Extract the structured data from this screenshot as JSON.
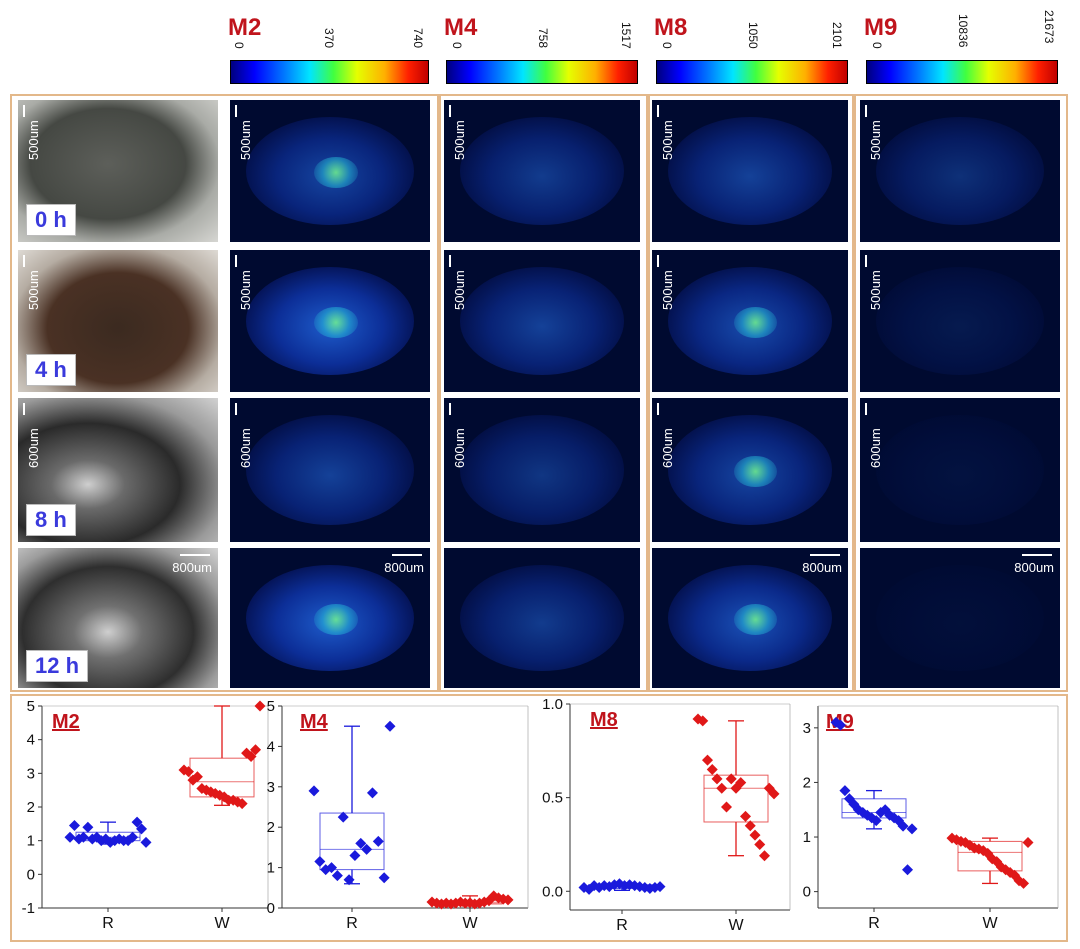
{
  "colorbars": [
    {
      "title": "M2",
      "ticks": [
        "0",
        "370",
        "740"
      ]
    },
    {
      "title": "M4",
      "ticks": [
        "0",
        "758",
        "1517"
      ]
    },
    {
      "title": "M8",
      "ticks": [
        "0",
        "1050",
        "2101"
      ]
    },
    {
      "title": "M9",
      "ticks": [
        "0",
        "10836",
        "21673"
      ]
    }
  ],
  "time_labels": [
    "0 h",
    "4 h",
    "8 h",
    "12 h"
  ],
  "scale_labels": {
    "r0": "500um",
    "r1": "500um",
    "r2": "600um",
    "r3": "800um"
  },
  "colors": {
    "R": "#1a1adc",
    "W": "#e01818",
    "frame": "#e3b88a",
    "title": "#c0141c"
  },
  "chart_data": [
    {
      "type": "box",
      "title": "M2",
      "categories": [
        "R",
        "W"
      ],
      "ylim": [
        -1,
        5
      ],
      "yticks": [
        "-1",
        "0",
        "1",
        "2",
        "3",
        "4",
        "5"
      ],
      "series": [
        {
          "name": "R",
          "q1": 1.0,
          "median": 1.1,
          "q3": 1.25,
          "whisker_low": 0.9,
          "whisker_high": 1.55,
          "points": [
            1.1,
            1.45,
            1.05,
            1.1,
            1.4,
            1.05,
            1.1,
            1.0,
            1.05,
            0.95,
            1.0,
            1.05,
            1.0,
            1.0,
            1.1,
            1.55,
            1.35,
            0.95
          ]
        },
        {
          "name": "W",
          "q1": 2.3,
          "median": 2.75,
          "q3": 3.45,
          "whisker_low": 2.05,
          "whisker_high": 5.0,
          "points": [
            3.1,
            3.05,
            2.8,
            2.9,
            2.55,
            2.5,
            2.45,
            2.4,
            2.35,
            2.3,
            2.2,
            2.2,
            2.15,
            2.1,
            3.6,
            3.5,
            3.7,
            5.0
          ]
        }
      ]
    },
    {
      "type": "box",
      "title": "M4",
      "categories": [
        "R",
        "W"
      ],
      "ylim": [
        0,
        5
      ],
      "yticks": [
        "0",
        "1",
        "2",
        "3",
        "4",
        "5"
      ],
      "series": [
        {
          "name": "R",
          "q1": 0.95,
          "median": 1.45,
          "q3": 2.35,
          "whisker_low": 0.6,
          "whisker_high": 4.5,
          "points": [
            2.9,
            1.15,
            0.95,
            1.0,
            0.8,
            2.25,
            0.7,
            1.3,
            1.6,
            1.45,
            2.85,
            1.65,
            0.75,
            4.5
          ]
        },
        {
          "name": "W",
          "q1": 0.1,
          "median": 0.13,
          "q3": 0.18,
          "whisker_low": 0.05,
          "whisker_high": 0.3,
          "points": [
            0.15,
            0.12,
            0.1,
            0.12,
            0.1,
            0.12,
            0.15,
            0.12,
            0.13,
            0.1,
            0.12,
            0.15,
            0.18,
            0.3,
            0.25,
            0.22,
            0.2
          ]
        }
      ]
    },
    {
      "type": "box",
      "title": "M8",
      "categories": [
        "R",
        "W"
      ],
      "ylim": [
        -0.1,
        1.0
      ],
      "yticks": [
        "0.0",
        "0.5",
        "1.0"
      ],
      "series": [
        {
          "name": "R",
          "q1": 0.015,
          "median": 0.025,
          "q3": 0.035,
          "whisker_low": 0.005,
          "whisker_high": 0.045,
          "points": [
            0.02,
            0.01,
            0.03,
            0.02,
            0.03,
            0.025,
            0.035,
            0.04,
            0.03,
            0.035,
            0.03,
            0.025,
            0.02,
            0.015,
            0.02,
            0.025
          ]
        },
        {
          "name": "W",
          "q1": 0.37,
          "median": 0.55,
          "q3": 0.62,
          "whisker_low": 0.19,
          "whisker_high": 0.91,
          "points": [
            0.92,
            0.91,
            0.7,
            0.65,
            0.6,
            0.55,
            0.45,
            0.6,
            0.55,
            0.58,
            0.4,
            0.35,
            0.3,
            0.25,
            0.19,
            0.55,
            0.52
          ]
        }
      ]
    },
    {
      "type": "box",
      "title": "M9",
      "categories": [
        "R",
        "W"
      ],
      "ylim": [
        -0.3,
        3.4
      ],
      "yticks": [
        "0",
        "1",
        "2",
        "3"
      ],
      "series": [
        {
          "name": "R",
          "q1": 1.35,
          "median": 1.45,
          "q3": 1.7,
          "whisker_low": 1.15,
          "whisker_high": 1.85,
          "points": [
            3.1,
            3.05,
            1.85,
            1.7,
            1.6,
            1.5,
            1.45,
            1.4,
            1.35,
            1.3,
            1.45,
            1.5,
            1.4,
            1.35,
            1.3,
            1.2,
            0.4,
            1.15
          ]
        },
        {
          "name": "W",
          "q1": 0.38,
          "median": 0.72,
          "q3": 0.92,
          "whisker_low": 0.15,
          "whisker_high": 0.98,
          "points": [
            0.98,
            0.95,
            0.92,
            0.9,
            0.85,
            0.8,
            0.78,
            0.75,
            0.7,
            0.6,
            0.55,
            0.45,
            0.4,
            0.35,
            0.3,
            0.2,
            0.15,
            0.9
          ]
        }
      ]
    }
  ]
}
